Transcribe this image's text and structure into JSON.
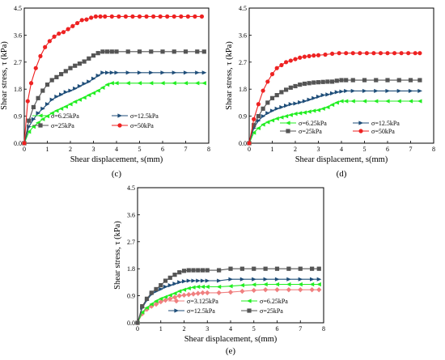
{
  "chart_data": [
    {
      "type": "line",
      "panel_label": "(c)",
      "xlabel": "Shear displacement, s(mm)",
      "ylabel": "Shear stress, τ (kPa)",
      "xlim": [
        0,
        8
      ],
      "ylim": [
        0,
        4.5
      ],
      "xticks": [
        "0",
        "1",
        "2",
        "3",
        "4",
        "5",
        "6",
        "7",
        "8"
      ],
      "yticks": [
        "0.0",
        "0.9",
        "1.8",
        "2.7",
        "3.6",
        "4.5"
      ],
      "legend_position": "bottom-center",
      "series": [
        {
          "name": "σ=6.25kPa",
          "color": "#22ee22",
          "marker": "triangle-left",
          "x": [
            0,
            0.2,
            0.4,
            0.6,
            0.8,
            1.0,
            1.2,
            1.4,
            1.6,
            1.8,
            2.0,
            2.2,
            2.4,
            2.6,
            2.8,
            3.0,
            3.2,
            3.4,
            3.6,
            3.8,
            4.0,
            4.5,
            5.0,
            5.5,
            6.0,
            6.5,
            7.0,
            7.5,
            7.8
          ],
          "y": [
            0,
            0.38,
            0.55,
            0.68,
            0.8,
            0.9,
            1.0,
            1.08,
            1.15,
            1.22,
            1.3,
            1.38,
            1.45,
            1.52,
            1.6,
            1.67,
            1.75,
            1.85,
            1.95,
            2.0,
            2.0,
            2.0,
            2.0,
            2.0,
            2.0,
            2.0,
            2.0,
            2.0,
            2.0
          ]
        },
        {
          "name": "σ=12.5kPa",
          "color": "#1f4e79",
          "marker": "triangle-right",
          "x": [
            0,
            0.2,
            0.4,
            0.6,
            0.8,
            1.0,
            1.2,
            1.4,
            1.6,
            1.8,
            2.0,
            2.2,
            2.4,
            2.6,
            2.8,
            3.0,
            3.2,
            3.4,
            3.6,
            3.8,
            4.0,
            4.5,
            5.0,
            5.5,
            6.0,
            6.5,
            7.0,
            7.5,
            7.8
          ],
          "y": [
            0,
            0.55,
            0.8,
            1.0,
            1.15,
            1.3,
            1.45,
            1.55,
            1.62,
            1.7,
            1.75,
            1.82,
            1.9,
            1.98,
            2.05,
            2.15,
            2.25,
            2.35,
            2.35,
            2.35,
            2.35,
            2.35,
            2.35,
            2.35,
            2.35,
            2.35,
            2.35,
            2.35,
            2.35
          ]
        },
        {
          "name": "σ=25kPa",
          "color": "#555555",
          "marker": "square",
          "x": [
            0,
            0.2,
            0.4,
            0.6,
            0.8,
            1.0,
            1.2,
            1.4,
            1.6,
            1.8,
            2.0,
            2.2,
            2.4,
            2.6,
            2.8,
            3.0,
            3.2,
            3.4,
            3.6,
            3.8,
            4.0,
            4.5,
            5.0,
            5.5,
            6.0,
            6.5,
            7.0,
            7.5,
            7.8
          ],
          "y": [
            0,
            0.75,
            1.2,
            1.5,
            1.75,
            1.95,
            2.1,
            2.2,
            2.3,
            2.4,
            2.5,
            2.58,
            2.65,
            2.72,
            2.82,
            2.92,
            3.0,
            3.05,
            3.05,
            3.05,
            3.05,
            3.05,
            3.05,
            3.05,
            3.05,
            3.05,
            3.05,
            3.05,
            3.05
          ]
        },
        {
          "name": "σ=50kPa",
          "color": "#ee2222",
          "marker": "circle",
          "x": [
            0,
            0.15,
            0.3,
            0.5,
            0.7,
            0.9,
            1.1,
            1.3,
            1.5,
            1.7,
            1.9,
            2.1,
            2.3,
            2.5,
            2.7,
            2.9,
            3.1,
            3.3,
            3.5,
            3.8,
            4.1,
            4.4,
            4.7,
            5.0,
            5.3,
            5.6,
            5.9,
            6.2,
            6.5,
            6.8,
            7.1,
            7.4,
            7.7
          ],
          "y": [
            0,
            1.4,
            2.0,
            2.5,
            2.9,
            3.2,
            3.4,
            3.55,
            3.65,
            3.7,
            3.8,
            3.9,
            4.0,
            4.1,
            4.12,
            4.18,
            4.22,
            4.22,
            4.22,
            4.22,
            4.22,
            4.22,
            4.22,
            4.22,
            4.22,
            4.22,
            4.22,
            4.22,
            4.22,
            4.22,
            4.22,
            4.22,
            4.22
          ]
        }
      ]
    },
    {
      "type": "line",
      "panel_label": "(d)",
      "xlabel": "Shear displacement, s(mm)",
      "ylabel": "Shear stress, τ (kPa)",
      "xlim": [
        0,
        8
      ],
      "ylim": [
        0,
        4.5
      ],
      "xticks": [
        "0",
        "1",
        "2",
        "3",
        "4",
        "5",
        "6",
        "7",
        "8"
      ],
      "yticks": [
        "0.0",
        "0.9",
        "1.8",
        "2.7",
        "3.6",
        "4.5"
      ],
      "legend_position": "bottom-right",
      "series": [
        {
          "name": "σ=6.25kPa",
          "color": "#22ee22",
          "marker": "triangle-left",
          "x": [
            0,
            0.2,
            0.4,
            0.6,
            0.8,
            1.0,
            1.2,
            1.4,
            1.6,
            1.8,
            2.0,
            2.2,
            2.4,
            2.6,
            2.8,
            3.0,
            3.2,
            3.4,
            3.6,
            3.8,
            4.0,
            4.2,
            4.5,
            5.0,
            5.5,
            6.0,
            6.5,
            7.0,
            7.4
          ],
          "y": [
            0,
            0.35,
            0.5,
            0.62,
            0.7,
            0.76,
            0.82,
            0.86,
            0.9,
            0.94,
            0.98,
            1.0,
            1.02,
            1.05,
            1.08,
            1.1,
            1.15,
            1.2,
            1.28,
            1.35,
            1.4,
            1.4,
            1.4,
            1.4,
            1.4,
            1.4,
            1.4,
            1.4,
            1.4
          ]
        },
        {
          "name": "σ=12.5kPa",
          "color": "#1f4e79",
          "marker": "triangle-right",
          "x": [
            0,
            0.2,
            0.4,
            0.6,
            0.8,
            1.0,
            1.2,
            1.4,
            1.6,
            1.8,
            2.0,
            2.2,
            2.4,
            2.6,
            2.8,
            3.0,
            3.2,
            3.4,
            3.6,
            3.8,
            4.0,
            4.2,
            4.5,
            5.0,
            5.5,
            6.0,
            6.5,
            7.0,
            7.4
          ],
          "y": [
            0,
            0.5,
            0.75,
            0.9,
            1.0,
            1.08,
            1.15,
            1.2,
            1.25,
            1.3,
            1.32,
            1.36,
            1.4,
            1.45,
            1.5,
            1.55,
            1.6,
            1.62,
            1.66,
            1.7,
            1.72,
            1.74,
            1.74,
            1.74,
            1.74,
            1.74,
            1.74,
            1.74,
            1.74
          ]
        },
        {
          "name": "σ=25kPa",
          "color": "#555555",
          "marker": "square",
          "x": [
            0,
            0.2,
            0.4,
            0.6,
            0.8,
            1.0,
            1.2,
            1.4,
            1.6,
            1.8,
            2.0,
            2.2,
            2.4,
            2.6,
            2.8,
            3.0,
            3.2,
            3.4,
            3.6,
            3.8,
            4.0,
            4.2,
            4.5,
            5.0,
            5.5,
            6.0,
            6.5,
            7.0,
            7.4
          ],
          "y": [
            0,
            0.6,
            0.9,
            1.15,
            1.35,
            1.5,
            1.6,
            1.7,
            1.78,
            1.85,
            1.9,
            1.95,
            1.98,
            2.0,
            2.02,
            2.03,
            2.04,
            2.05,
            2.05,
            2.08,
            2.1,
            2.1,
            2.1,
            2.1,
            2.1,
            2.1,
            2.1,
            2.1,
            2.1
          ]
        },
        {
          "name": "σ=50kPa",
          "color": "#ee2222",
          "marker": "circle",
          "x": [
            0,
            0.2,
            0.4,
            0.6,
            0.8,
            1.0,
            1.2,
            1.4,
            1.6,
            1.8,
            2.0,
            2.2,
            2.4,
            2.6,
            2.8,
            3.0,
            3.3,
            3.6,
            3.9,
            4.2,
            4.5,
            4.8,
            5.1,
            5.4,
            5.7,
            6.0,
            6.3,
            6.6,
            6.9,
            7.2,
            7.4
          ],
          "y": [
            0,
            0.8,
            1.3,
            1.75,
            2.05,
            2.3,
            2.5,
            2.6,
            2.7,
            2.75,
            2.8,
            2.85,
            2.88,
            2.9,
            2.92,
            2.93,
            2.95,
            2.98,
            3.0,
            3.0,
            3.0,
            3.0,
            3.0,
            3.0,
            3.0,
            3.0,
            3.0,
            3.0,
            3.0,
            3.0,
            3.0
          ]
        }
      ]
    },
    {
      "type": "line",
      "panel_label": "(e)",
      "xlabel": "Shear displacement, s(mm)",
      "ylabel": "Shear stress, τ (kPa)",
      "xlim": [
        0,
        8
      ],
      "ylim": [
        0,
        4.5
      ],
      "xticks": [
        "0",
        "1",
        "2",
        "3",
        "4",
        "5",
        "6",
        "7",
        "8"
      ],
      "yticks": [
        "0.0",
        "0.9",
        "1.8",
        "2.7",
        "3.6",
        "4.5"
      ],
      "legend_position": "bottom-right",
      "series": [
        {
          "name": "σ=3.125kPa",
          "color": "#f08080",
          "marker": "diamond",
          "x": [
            0,
            0.2,
            0.4,
            0.6,
            0.8,
            1.0,
            1.2,
            1.4,
            1.6,
            1.8,
            2.0,
            2.2,
            2.4,
            2.6,
            2.8,
            3.0,
            3.5,
            4.0,
            4.5,
            5.0,
            5.5,
            6.0,
            6.5,
            7.0,
            7.5,
            7.8
          ],
          "y": [
            0,
            0.3,
            0.45,
            0.55,
            0.62,
            0.7,
            0.75,
            0.8,
            0.85,
            0.9,
            0.92,
            0.94,
            0.96,
            0.98,
            1.0,
            1.0,
            1.0,
            1.02,
            1.05,
            1.08,
            1.1,
            1.1,
            1.1,
            1.1,
            1.1,
            1.1
          ]
        },
        {
          "name": "σ=6.25kPa",
          "color": "#22ee22",
          "marker": "triangle-left",
          "x": [
            0,
            0.2,
            0.4,
            0.6,
            0.8,
            1.0,
            1.2,
            1.4,
            1.6,
            1.8,
            2.0,
            2.2,
            2.4,
            2.6,
            2.8,
            3.0,
            3.5,
            4.0,
            4.5,
            5.0,
            5.5,
            6.0,
            6.5,
            7.0,
            7.5,
            7.8
          ],
          "y": [
            0,
            0.35,
            0.5,
            0.62,
            0.72,
            0.8,
            0.86,
            0.92,
            0.98,
            1.05,
            1.1,
            1.15,
            1.18,
            1.2,
            1.2,
            1.2,
            1.2,
            1.22,
            1.25,
            1.27,
            1.28,
            1.28,
            1.28,
            1.28,
            1.28,
            1.28
          ]
        },
        {
          "name": "σ=12.5kPa",
          "color": "#1f4e79",
          "marker": "triangle-right",
          "x": [
            0,
            0.2,
            0.4,
            0.6,
            0.8,
            1.0,
            1.2,
            1.4,
            1.6,
            1.8,
            2.0,
            2.2,
            2.4,
            2.6,
            2.8,
            3.0,
            3.5,
            4.0,
            4.5,
            5.0,
            5.5,
            6.0,
            6.5,
            7.0,
            7.5,
            7.8
          ],
          "y": [
            0,
            0.5,
            0.75,
            0.95,
            1.05,
            1.12,
            1.2,
            1.25,
            1.3,
            1.35,
            1.38,
            1.4,
            1.4,
            1.4,
            1.4,
            1.4,
            1.4,
            1.45,
            1.45,
            1.45,
            1.45,
            1.45,
            1.45,
            1.45,
            1.45,
            1.45
          ]
        },
        {
          "name": "σ=25kPa",
          "color": "#555555",
          "marker": "square",
          "x": [
            0,
            0.2,
            0.4,
            0.6,
            0.8,
            1.0,
            1.2,
            1.4,
            1.6,
            1.8,
            2.0,
            2.2,
            2.4,
            2.6,
            2.8,
            3.0,
            3.5,
            4.0,
            4.5,
            5.0,
            5.5,
            6.0,
            6.5,
            7.0,
            7.5,
            7.8
          ],
          "y": [
            0,
            0.55,
            0.8,
            1.0,
            1.12,
            1.25,
            1.4,
            1.5,
            1.6,
            1.68,
            1.73,
            1.75,
            1.75,
            1.75,
            1.75,
            1.75,
            1.75,
            1.8,
            1.8,
            1.8,
            1.8,
            1.8,
            1.8,
            1.8,
            1.8,
            1.8
          ]
        }
      ]
    }
  ]
}
